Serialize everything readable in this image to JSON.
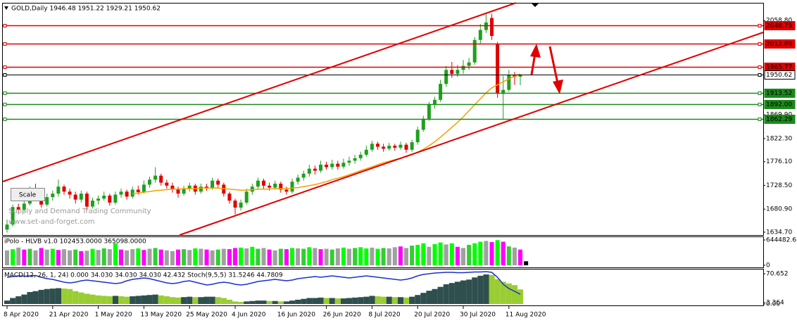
{
  "header": "GOLD,Daily  1946.48 1951.22 1929.21 1950.62",
  "watermark": [
    "Supply and Demand Trading Community",
    "www.set-and-forget.com"
  ],
  "scale_button": "Scale",
  "chart_data": [
    {
      "type": "candlestick",
      "categories": [
        "8 Apr 2020",
        null,
        null,
        null,
        null,
        null,
        null,
        null,
        "21 Apr 2020",
        null,
        null,
        null,
        null,
        null,
        null,
        null,
        "1 May 2020",
        null,
        null,
        null,
        null,
        null,
        null,
        null,
        "13 May 2020",
        null,
        null,
        null,
        null,
        null,
        null,
        null,
        "25 May 2020",
        null,
        null,
        null,
        null,
        null,
        null,
        null,
        "4 Jun 2020",
        null,
        null,
        null,
        null,
        null,
        null,
        null,
        "16 Jun 2020",
        null,
        null,
        null,
        null,
        null,
        null,
        null,
        "26 Jun 2020",
        null,
        null,
        null,
        null,
        null,
        null,
        null,
        "8 Jul 2020",
        null,
        null,
        null,
        null,
        null,
        null,
        null,
        "20 Jul 2020",
        null,
        null,
        null,
        null,
        null,
        null,
        null,
        "30 Jul 2020",
        null,
        null,
        null,
        null,
        null,
        null,
        null,
        "11 Aug 2020",
        null,
        null
      ],
      "open": [
        1640,
        1650,
        1685,
        1680,
        1692,
        1720,
        1714,
        1690,
        1705,
        1712,
        1726,
        1716,
        1710,
        1700,
        1712,
        1686,
        1698,
        1702,
        1708,
        1694,
        1710,
        1716,
        1706,
        1720,
        1715,
        1730,
        1740,
        1748,
        1734,
        1728,
        1720,
        1712,
        1722,
        1728,
        1716,
        1726,
        1724,
        1738,
        1730,
        1712,
        1698,
        1684,
        1694,
        1716,
        1726,
        1738,
        1728,
        1724,
        1732,
        1720,
        1716,
        1736,
        1744,
        1752,
        1762,
        1758,
        1770,
        1765,
        1772,
        1766,
        1774,
        1778,
        1783,
        1790,
        1800,
        1812,
        1806,
        1802,
        1808,
        1804,
        1810,
        1800,
        1815,
        1840,
        1862,
        1890,
        1900,
        1932,
        1960,
        1952,
        1960,
        1968,
        1975,
        2020,
        2040,
        2064,
        2012,
        1912,
        1920,
        1950,
        1946.48
      ],
      "high": [
        1660,
        1690,
        1692,
        1698,
        1726,
        1732,
        1718,
        1712,
        1718,
        1740,
        1730,
        1722,
        1716,
        1718,
        1716,
        1704,
        1708,
        1716,
        1712,
        1716,
        1722,
        1720,
        1726,
        1728,
        1738,
        1746,
        1765,
        1752,
        1740,
        1734,
        1726,
        1728,
        1734,
        1732,
        1732,
        1732,
        1744,
        1742,
        1734,
        1716,
        1702,
        1700,
        1722,
        1732,
        1744,
        1742,
        1734,
        1738,
        1736,
        1726,
        1742,
        1750,
        1758,
        1770,
        1768,
        1778,
        1776,
        1780,
        1778,
        1782,
        1786,
        1790,
        1796,
        1808,
        1818,
        1816,
        1812,
        1814,
        1812,
        1816,
        1814,
        1820,
        1846,
        1868,
        1896,
        1906,
        1940,
        1968,
        1976,
        1970,
        1980,
        1984,
        2026,
        2052,
        2075,
        2072,
        2016,
        1948,
        1960,
        1956,
        1951.22
      ],
      "low": [
        1634,
        1646,
        1672,
        1676,
        1688,
        1708,
        1684,
        1686,
        1698,
        1706,
        1710,
        1702,
        1692,
        1694,
        1680,
        1682,
        1690,
        1698,
        1688,
        1690,
        1704,
        1700,
        1702,
        1710,
        1712,
        1724,
        1734,
        1728,
        1722,
        1714,
        1704,
        1708,
        1716,
        1710,
        1712,
        1718,
        1720,
        1724,
        1706,
        1692,
        1670,
        1678,
        1690,
        1710,
        1720,
        1722,
        1718,
        1720,
        1714,
        1710,
        1712,
        1730,
        1738,
        1746,
        1750,
        1754,
        1760,
        1760,
        1760,
        1762,
        1768,
        1772,
        1778,
        1786,
        1796,
        1800,
        1796,
        1798,
        1798,
        1800,
        1794,
        1796,
        1810,
        1836,
        1858,
        1882,
        1896,
        1926,
        1944,
        1946,
        1952,
        1960,
        1970,
        2012,
        2034,
        2020,
        1904,
        1862,
        1916,
        1930,
        1929.21
      ],
      "close": [
        1650,
        1685,
        1680,
        1692,
        1720,
        1714,
        1690,
        1705,
        1712,
        1726,
        1716,
        1710,
        1700,
        1712,
        1686,
        1698,
        1702,
        1708,
        1694,
        1710,
        1716,
        1706,
        1720,
        1715,
        1730,
        1740,
        1748,
        1734,
        1728,
        1720,
        1712,
        1722,
        1728,
        1716,
        1726,
        1724,
        1738,
        1730,
        1712,
        1698,
        1684,
        1694,
        1716,
        1726,
        1738,
        1728,
        1724,
        1732,
        1720,
        1716,
        1736,
        1744,
        1752,
        1762,
        1758,
        1770,
        1765,
        1772,
        1766,
        1774,
        1778,
        1783,
        1790,
        1800,
        1812,
        1806,
        1802,
        1808,
        1804,
        1810,
        1800,
        1815,
        1840,
        1862,
        1890,
        1900,
        1932,
        1960,
        1952,
        1960,
        1968,
        1975,
        2020,
        2040,
        2055,
        2028,
        1912,
        1920,
        1950,
        1946,
        1950.62
      ],
      "up_color": "#1fa01f",
      "down_color": "#e00000",
      "ma": {
        "color": "#f5a000",
        "values": [
          null,
          null,
          null,
          null,
          null,
          null,
          null,
          null,
          null,
          null,
          null,
          null,
          null,
          null,
          null,
          null,
          null,
          null,
          null,
          null,
          null,
          null,
          1712,
          1713,
          1715,
          1716,
          1718,
          1719,
          1720,
          1721,
          1721,
          1722,
          1722,
          1722,
          1723,
          1723,
          1723,
          1723,
          1722,
          1721,
          1720,
          1719,
          1719,
          1720,
          1721,
          1721,
          1721,
          1722,
          1722,
          1722,
          1723,
          1724,
          1726,
          1728,
          1730,
          1733,
          1736,
          1740,
          1743,
          1746,
          1750,
          1754,
          1758,
          1762,
          1766,
          1770,
          1774,
          1777,
          1780,
          1783,
          1786,
          1790,
          1795,
          1801,
          1808,
          1816,
          1825,
          1835,
          1845,
          1855,
          1866,
          1878,
          1890,
          1902,
          1914,
          1924,
          1930,
          1936,
          1942,
          1947,
          1952
        ]
      },
      "levels": [
        {
          "value": 2048.75,
          "label": "2048.75",
          "color": "#e00000"
        },
        {
          "value": 2012.89,
          "label": "2012.89",
          "color": "#e00000"
        },
        {
          "value": 1965.77,
          "label": "1965.77",
          "color": "#e00000"
        },
        {
          "value": 1950.62,
          "label": "1950.62",
          "color": "#000000"
        },
        {
          "value": 1913.52,
          "label": "1913.52",
          "color": "#1a8a1a"
        },
        {
          "value": 1892.0,
          "label": "1892.00",
          "color": "#1a8a1a"
        },
        {
          "value": 1862.29,
          "label": "1862.29",
          "color": "#1a8a1a"
        }
      ],
      "ylim": [
        1629.0,
        2093.0
      ],
      "yticks": [
        {
          "value": 2058.8,
          "label": "2058.80"
        },
        {
          "value": 1869.9,
          "label": "1869.90"
        },
        {
          "value": 1822.3,
          "label": "1822.30"
        },
        {
          "value": 1776.1,
          "label": "1776.10"
        },
        {
          "value": 1728.5,
          "label": "1728.50"
        },
        {
          "value": 1680.9,
          "label": "1680.90"
        },
        {
          "value": 1634.7,
          "label": "1634.70"
        }
      ]
    },
    {
      "type": "bar",
      "title": "iPolo - HLVB v1.0 102453.0000 365098.0000",
      "values": [
        380000,
        410000,
        450000,
        400000,
        420000,
        380000,
        440000,
        400000,
        420000,
        390000,
        410000,
        380000,
        400000,
        360000,
        370000,
        420000,
        390000,
        430000,
        410000,
        560000,
        400000,
        380000,
        410000,
        430000,
        390000,
        420000,
        440000,
        400000,
        380000,
        360000,
        400000,
        410000,
        390000,
        430000,
        420000,
        400000,
        380000,
        400000,
        420000,
        410000,
        440000,
        450000,
        430000,
        470000,
        420000,
        440000,
        400000,
        380000,
        420000,
        410000,
        440000,
        430000,
        420000,
        460000,
        440000,
        410000,
        420000,
        400000,
        430000,
        450000,
        420000,
        440000,
        460000,
        430000,
        450000,
        420000,
        440000,
        430000,
        460000,
        480000,
        440000,
        500000,
        520000,
        560000,
        470000,
        540000,
        580000,
        530000,
        560000,
        470000,
        440000,
        520000,
        560000,
        600000,
        620000,
        590000,
        640000,
        600000,
        480000,
        450000,
        400000,
        102453
      ],
      "colors": [
        "#a0a0a0",
        "#00ff00",
        "#a0a0a0",
        "#ff00ff",
        "#32cd32",
        "#a0a0a0",
        "#ff00ff",
        "#a0a0a0",
        "#00ff00",
        "#ff00ff",
        "#a0a0a0",
        "#a0a0a0",
        "#32cd32",
        "#ff00ff",
        "#a0a0a0",
        "#00ff00",
        "#a0a0a0",
        "#32cd32",
        "#a0a0a0",
        "#00ff00",
        "#ff00ff",
        "#a0a0a0",
        "#a0a0a0",
        "#00ff00",
        "#ff00ff",
        "#a0a0a0",
        "#32cd32",
        "#ff00ff",
        "#a0a0a0",
        "#a0a0a0",
        "#ff00ff",
        "#32cd32",
        "#a0a0a0",
        "#00ff00",
        "#a0a0a0",
        "#ff00ff",
        "#a0a0a0",
        "#32cd32",
        "#a0a0a0",
        "#ff00ff",
        "#ff00ff",
        "#00ff00",
        "#a0a0a0",
        "#00ff00",
        "#32cd32",
        "#a0a0a0",
        "#ff00ff",
        "#a0a0a0",
        "#32cd32",
        "#ff00ff",
        "#00ff00",
        "#a0a0a0",
        "#32cd32",
        "#00ff00",
        "#a0a0a0",
        "#ff00ff",
        "#a0a0a0",
        "#32cd32",
        "#a0a0a0",
        "#00ff00",
        "#a0a0a0",
        "#32cd32",
        "#00ff00",
        "#00ff00",
        "#a0a0a0",
        "#00ff00",
        "#32cd32",
        "#a0a0a0",
        "#a0a0a0",
        "#ff00ff",
        "#a0a0a0",
        "#32cd32",
        "#00ff00",
        "#00ff00",
        "#a0a0a0",
        "#00ff00",
        "#00ff00",
        "#a0a0a0",
        "#00ff00",
        "#ff00ff",
        "#a0a0a0",
        "#32cd32",
        "#00ff00",
        "#00ff00",
        "#a0a0a0",
        "#ff00ff",
        "#00ff00",
        "#ff00ff",
        "#32cd32",
        "#a0a0a0",
        "#ff00ff"
      ],
      "ylim": [
        0,
        644482.65
      ],
      "yticks": [
        644482.65,
        0
      ]
    },
    {
      "type": "combo",
      "title": "MACD(12, 26, 1, 24) 0.000 34.030 34.030 34.030 42.432  Stoch(9,5,5) 31.5246 44.7809",
      "series": [
        {
          "values": [
            8,
            14,
            18,
            22,
            28,
            30,
            33,
            35,
            36,
            37,
            36,
            35,
            30,
            27,
            24,
            22,
            20,
            19,
            18,
            19,
            18,
            17,
            18,
            19,
            20,
            21,
            22,
            20,
            18,
            16,
            15,
            16,
            17,
            16,
            16,
            17,
            17,
            16,
            14,
            10,
            6,
            5,
            6,
            7,
            8,
            8,
            7,
            7,
            6,
            6,
            8,
            10,
            12,
            14,
            14,
            15,
            14,
            14,
            13,
            13,
            14,
            15,
            16,
            17,
            19,
            18,
            17,
            17,
            16,
            16,
            15,
            17,
            21,
            26,
            31,
            35,
            40,
            46,
            49,
            52,
            55,
            57,
            62,
            66,
            69,
            68,
            58,
            52,
            48,
            44,
            34.03
          ],
          "rising_color": "#2f4f4f",
          "falling_color": "#9acd32"
        },
        {
          "values": [
            80,
            82,
            84,
            83,
            84,
            85,
            80,
            76,
            74,
            70,
            66,
            64,
            66,
            70,
            72,
            70,
            68,
            66,
            64,
            62,
            64,
            70,
            74,
            76,
            78,
            76,
            72,
            68,
            64,
            62,
            64,
            68,
            70,
            66,
            62,
            58,
            60,
            64,
            66,
            64,
            60,
            58,
            60,
            64,
            68,
            70,
            72,
            74,
            72,
            70,
            72,
            76,
            78,
            80,
            82,
            80,
            82,
            84,
            82,
            80,
            78,
            80,
            82,
            84,
            82,
            80,
            78,
            76,
            74,
            72,
            74,
            78,
            84,
            88,
            90,
            92,
            93,
            94,
            94,
            93,
            93,
            94,
            95,
            95,
            96,
            94,
            80,
            60,
            48,
            40,
            31.5246
          ],
          "color": "#1c2fcc",
          "axis": "y2"
        }
      ],
      "ylim": [
        0,
        70.652
      ],
      "yticks": [
        70.652,
        3.364,
        {
          "value": 0,
          "label": "0.00"
        }
      ],
      "y2lim": [
        0,
        100
      ]
    }
  ]
}
